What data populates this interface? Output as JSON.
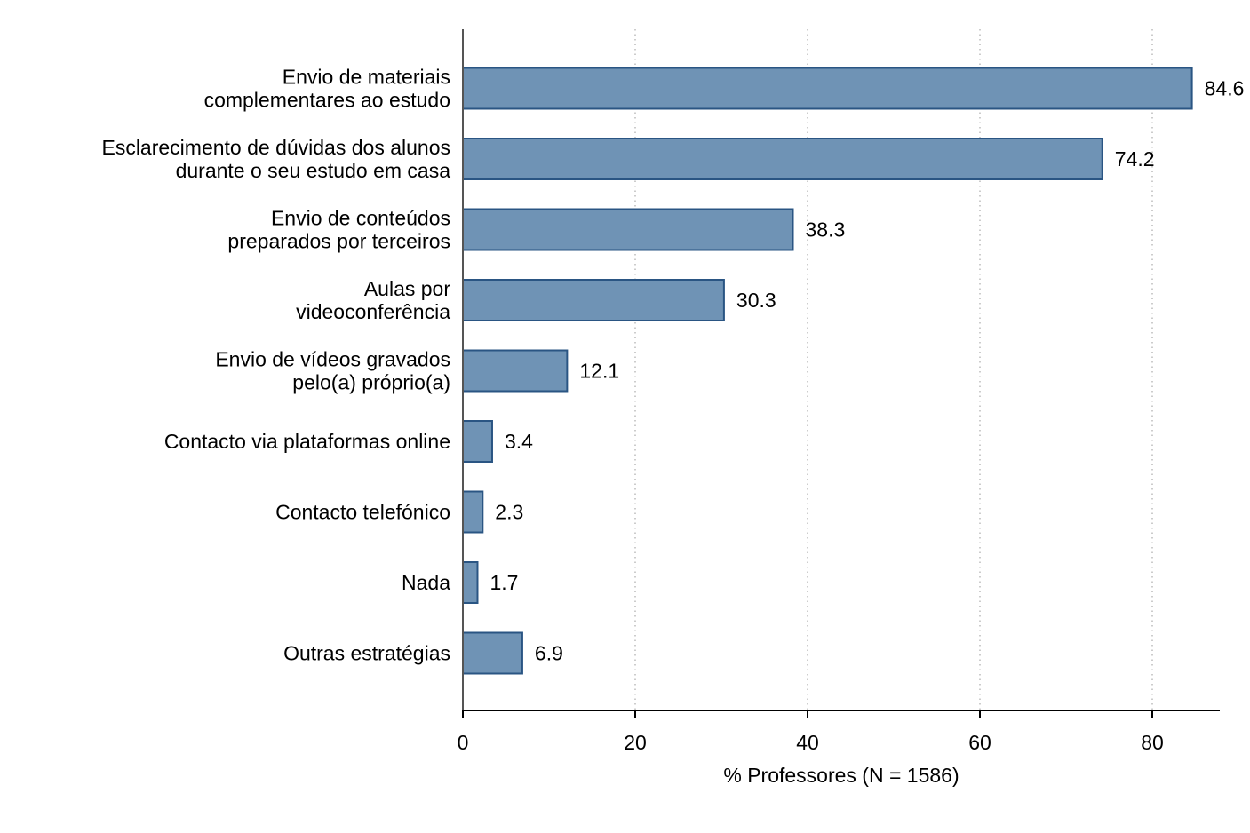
{
  "chart_data": {
    "type": "bar",
    "orientation": "horizontal",
    "categories": [
      [
        "Envio de materiais",
        "complementares ao estudo"
      ],
      [
        "Esclarecimento de dúvidas dos alunos",
        "durante o seu estudo em casa"
      ],
      [
        "Envio de conteúdos",
        "preparados por terceiros"
      ],
      [
        "Aulas por",
        "videoconferência"
      ],
      [
        "Envio de vídeos gravados",
        "pelo(a) próprio(a)"
      ],
      [
        "Contacto via plataformas online"
      ],
      [
        "Contacto telefónico"
      ],
      [
        "Nada"
      ],
      [
        "Outras estratégias"
      ]
    ],
    "values": [
      84.6,
      74.2,
      38.3,
      30.3,
      12.1,
      3.4,
      2.3,
      1.7,
      6.9
    ],
    "value_labels": [
      "84.6",
      "74.2",
      "38.3",
      "30.3",
      "12.1",
      "3.4",
      "2.3",
      "1.7",
      "6.9"
    ],
    "xlabel": "% Professores (N = 1586)",
    "xlim": [
      0,
      88
    ],
    "xticks": [
      0,
      20,
      40,
      60,
      80
    ],
    "xtick_labels": [
      "0",
      "20",
      "40",
      "60",
      "80"
    ],
    "grid": "vertical dotted",
    "colors": {
      "bar_fill": "#6f93b5",
      "bar_edge": "#2a5583",
      "grid": "#aaaaaa",
      "axis": "#000000"
    }
  }
}
